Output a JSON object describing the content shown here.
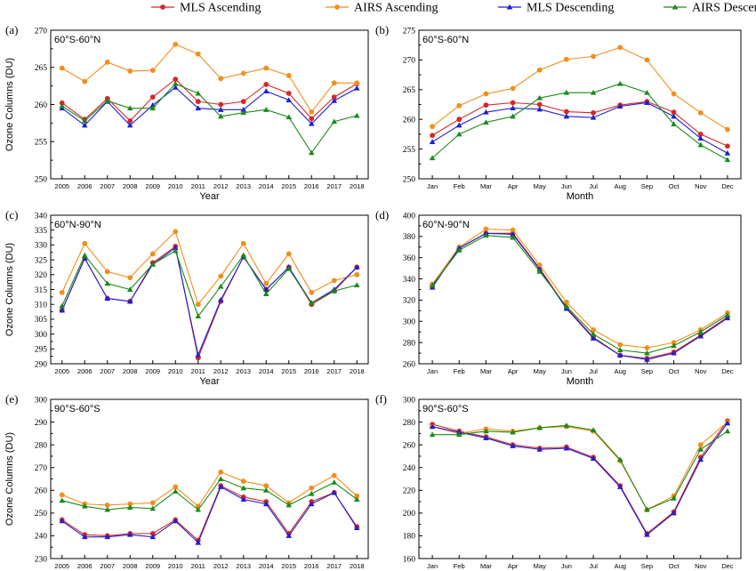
{
  "legend": [
    {
      "name": "MLS Ascending",
      "color": "#d62728",
      "marker": "circle"
    },
    {
      "name": "AIRS Ascending",
      "color": "#f28e1c",
      "marker": "circle"
    },
    {
      "name": "MLS Descending",
      "color": "#1f1fcf",
      "marker": "triangle"
    },
    {
      "name": "AIRS Descending",
      "color": "#1a8a1a",
      "marker": "triangle"
    }
  ],
  "chart_data": [
    {
      "panel": "(a)",
      "region": "60°S-60°N",
      "type": "line",
      "xlabel": "Year",
      "ylabel": "Ozone Columns (DU)",
      "categories": [
        "2005",
        "2006",
        "2007",
        "2008",
        "2009",
        "2010",
        "2011",
        "2012",
        "2013",
        "2014",
        "2015",
        "2016",
        "2017",
        "2018"
      ],
      "ylim": [
        250,
        270
      ],
      "yticks": [
        250,
        255,
        260,
        265,
        270
      ],
      "series": [
        {
          "name": "MLS Ascending",
          "values": [
            260.2,
            258.0,
            260.8,
            257.8,
            261.0,
            263.4,
            260.4,
            260.0,
            260.4,
            262.7,
            261.5,
            258.1,
            261.0,
            262.8
          ]
        },
        {
          "name": "AIRS Ascending",
          "values": [
            264.9,
            263.1,
            265.7,
            264.5,
            264.6,
            268.1,
            266.8,
            263.5,
            264.2,
            264.9,
            263.9,
            259.0,
            262.9,
            262.9
          ]
        },
        {
          "name": "MLS Descending",
          "values": [
            259.5,
            257.2,
            260.4,
            257.2,
            259.9,
            262.3,
            259.5,
            259.3,
            259.3,
            261.8,
            260.6,
            257.4,
            260.5,
            262.2
          ]
        },
        {
          "name": "AIRS Descending",
          "values": [
            259.8,
            257.8,
            260.5,
            259.5,
            259.5,
            262.8,
            261.5,
            258.4,
            258.9,
            259.3,
            258.3,
            253.5,
            257.7,
            258.5
          ]
        }
      ]
    },
    {
      "panel": "(b)",
      "region": "60°S-60°N",
      "type": "line",
      "xlabel": "Month",
      "ylabel": "",
      "categories": [
        "Jan",
        "Feb",
        "Mar",
        "Apr",
        "May",
        "Jun",
        "Jul",
        "Aug",
        "Sep",
        "Oct",
        "Nov",
        "Dec"
      ],
      "ylim": [
        250,
        275
      ],
      "yticks": [
        250,
        255,
        260,
        265,
        270,
        275
      ],
      "series": [
        {
          "name": "MLS Ascending",
          "values": [
            257.3,
            260.0,
            262.4,
            262.8,
            262.5,
            261.3,
            261.1,
            262.4,
            263.0,
            261.2,
            257.5,
            255.5
          ]
        },
        {
          "name": "AIRS Ascending",
          "values": [
            258.8,
            262.3,
            264.3,
            265.2,
            268.3,
            270.1,
            270.6,
            272.1,
            270.0,
            264.3,
            261.1,
            258.3
          ]
        },
        {
          "name": "MLS Descending",
          "values": [
            256.2,
            259.0,
            261.2,
            261.9,
            261.7,
            260.5,
            260.3,
            262.2,
            262.8,
            260.5,
            256.8,
            254.3
          ]
        },
        {
          "name": "AIRS Descending",
          "values": [
            253.5,
            257.5,
            259.5,
            260.5,
            263.6,
            264.5,
            264.5,
            266.0,
            264.5,
            259.2,
            255.7,
            253.2
          ]
        }
      ]
    },
    {
      "panel": "(c)",
      "region": "60°N-90°N",
      "type": "line",
      "xlabel": "Year",
      "ylabel": "Ozone Columns (DU)",
      "categories": [
        "2005",
        "2006",
        "2007",
        "2008",
        "2009",
        "2010",
        "2011",
        "2012",
        "2013",
        "2014",
        "2015",
        "2016",
        "2017",
        "2018"
      ],
      "ylim": [
        290,
        340
      ],
      "yticks": [
        290,
        295,
        300,
        305,
        310,
        315,
        320,
        325,
        330,
        335,
        340
      ],
      "series": [
        {
          "name": "MLS Ascending",
          "values": [
            308.0,
            325.5,
            312.0,
            311.0,
            324.0,
            329.5,
            292.0,
            311.0,
            326.0,
            315.0,
            322.5,
            310.0,
            314.5,
            322.5
          ]
        },
        {
          "name": "AIRS Ascending",
          "values": [
            314.0,
            330.5,
            321.0,
            319.0,
            327.0,
            334.5,
            310.0,
            319.5,
            330.5,
            317.0,
            327.0,
            314.0,
            318.0,
            320.0
          ]
        },
        {
          "name": "MLS Descending",
          "values": [
            308.0,
            325.5,
            312.0,
            311.0,
            323.5,
            329.0,
            293.0,
            311.5,
            326.0,
            315.0,
            322.5,
            310.5,
            315.0,
            322.5
          ]
        },
        {
          "name": "AIRS Descending",
          "values": [
            309.5,
            326.5,
            317.0,
            315.0,
            323.5,
            328.0,
            306.0,
            316.0,
            326.5,
            313.5,
            322.0,
            310.5,
            314.5,
            316.5
          ]
        }
      ]
    },
    {
      "panel": "(d)",
      "region": "60°N-90°N",
      "type": "line",
      "xlabel": "Month",
      "ylabel": "",
      "categories": [
        "Jan",
        "Feb",
        "Mar",
        "Apr",
        "May",
        "Jun",
        "Jul",
        "Aug",
        "Sep",
        "Oct",
        "Nov",
        "Dec"
      ],
      "ylim": [
        260,
        400
      ],
      "yticks": [
        260,
        280,
        300,
        320,
        340,
        360,
        380,
        400
      ],
      "series": [
        {
          "name": "MLS Ascending",
          "values": [
            333,
            369,
            383,
            383,
            350,
            313,
            285,
            268,
            265,
            271,
            287,
            304
          ]
        },
        {
          "name": "AIRS Ascending",
          "values": [
            335,
            370,
            387,
            386,
            353,
            318,
            292,
            278,
            275,
            280,
            292,
            308
          ]
        },
        {
          "name": "MLS Descending",
          "values": [
            332,
            369,
            383,
            382,
            349,
            312,
            284,
            268,
            264,
            270,
            286,
            303
          ]
        },
        {
          "name": "AIRS Descending",
          "values": [
            334,
            367,
            381,
            379,
            347,
            314,
            288,
            273,
            270,
            277,
            290,
            306
          ]
        }
      ]
    },
    {
      "panel": "(e)",
      "region": "90°S-60°S",
      "type": "line",
      "xlabel": "Year",
      "ylabel": "Ozone Columns (DU)",
      "categories": [
        "2005",
        "2006",
        "2007",
        "2008",
        "2009",
        "2010",
        "2011",
        "2012",
        "2013",
        "2014",
        "2015",
        "2016",
        "2017",
        "2018"
      ],
      "ylim": [
        230,
        300
      ],
      "yticks": [
        230,
        240,
        250,
        260,
        270,
        280,
        290,
        300
      ],
      "series": [
        {
          "name": "MLS Ascending",
          "values": [
            247.0,
            240.5,
            240.0,
            241.0,
            241.0,
            247.0,
            238.0,
            262.0,
            257.0,
            255.0,
            241.0,
            255.0,
            259.0,
            244.0
          ]
        },
        {
          "name": "AIRS Ascending",
          "values": [
            258.0,
            254.0,
            253.5,
            254.0,
            254.5,
            261.5,
            253.0,
            268.0,
            264.0,
            262.0,
            254.5,
            261.0,
            266.5,
            257.5
          ]
        },
        {
          "name": "MLS Descending",
          "values": [
            246.5,
            239.5,
            239.5,
            240.5,
            239.5,
            246.5,
            237.0,
            261.5,
            256.0,
            254.0,
            240.0,
            254.0,
            259.0,
            243.5
          ]
        },
        {
          "name": "AIRS Descending",
          "values": [
            255.5,
            253.0,
            251.5,
            252.5,
            252.0,
            259.5,
            251.5,
            265.0,
            261.0,
            260.0,
            253.5,
            258.5,
            263.5,
            256.0
          ]
        }
      ]
    },
    {
      "panel": "(f)",
      "region": "90°S-60°S",
      "type": "line",
      "xlabel": "Month",
      "ylabel": "",
      "categories": [
        "Jan",
        "Feb",
        "Mar",
        "Apr",
        "May",
        "Jun",
        "Jul",
        "Aug",
        "Sep",
        "Oct",
        "Nov",
        "Dec"
      ],
      "ylim": [
        160,
        300
      ],
      "yticks": [
        160,
        180,
        200,
        220,
        240,
        260,
        280,
        300
      ],
      "series": [
        {
          "name": "MLS Ascending",
          "values": [
            278,
            272,
            267,
            260,
            257,
            258,
            249,
            224,
            182,
            201,
            249,
            281
          ]
        },
        {
          "name": "AIRS Ascending",
          "values": [
            276,
            270,
            274,
            272,
            275,
            276,
            272,
            246,
            203,
            215,
            260,
            280
          ]
        },
        {
          "name": "MLS Descending",
          "values": [
            276,
            271,
            266,
            259,
            256,
            257,
            248,
            223,
            181,
            200,
            247,
            279
          ]
        },
        {
          "name": "AIRS Descending",
          "values": [
            269,
            269,
            272,
            271,
            275,
            277,
            273,
            247,
            203,
            213,
            256,
            272
          ]
        }
      ]
    }
  ]
}
